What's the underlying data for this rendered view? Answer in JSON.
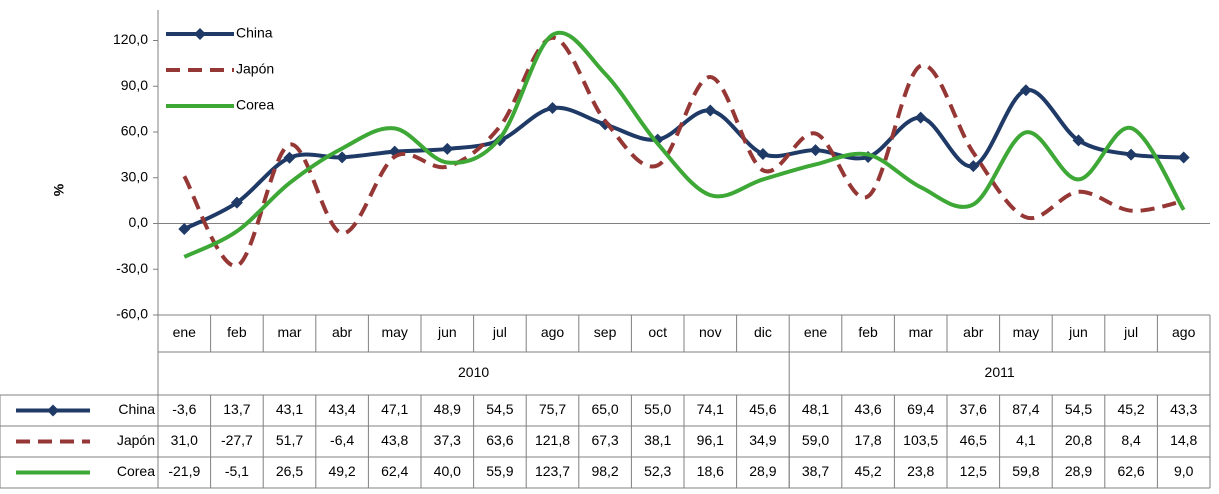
{
  "chart_data": {
    "type": "line",
    "y_label": "%",
    "ylim": [
      -60,
      140
    ],
    "yticks": [
      {
        "value": -60,
        "label": "-60,0"
      },
      {
        "value": -30,
        "label": "-30,0"
      },
      {
        "value": 0,
        "label": "0,0"
      },
      {
        "value": 30,
        "label": "30,0"
      },
      {
        "value": 60,
        "label": "60,0"
      },
      {
        "value": 90,
        "label": "90,0"
      },
      {
        "value": 120,
        "label": "120,0"
      }
    ],
    "category_groups": [
      {
        "name": "2010",
        "categories": [
          "ene",
          "feb",
          "mar",
          "abr",
          "may",
          "jun",
          "jul",
          "ago",
          "sep",
          "oct",
          "nov",
          "dic"
        ]
      },
      {
        "name": "2011",
        "categories": [
          "ene",
          "feb",
          "mar",
          "abr",
          "may",
          "jun",
          "jul",
          "ago"
        ]
      }
    ],
    "legend": "top-left",
    "smooth": true,
    "series": [
      {
        "name": "China",
        "color": "#1f3a66",
        "dash": false,
        "marker": "diamond",
        "values": [
          -3.6,
          13.7,
          43.1,
          43.4,
          47.1,
          48.9,
          54.5,
          75.7,
          65.0,
          55.0,
          74.1,
          45.6,
          48.1,
          43.6,
          69.4,
          37.6,
          87.4,
          54.5,
          45.2,
          43.3
        ],
        "value_labels": [
          "-3,6",
          "13,7",
          "43,1",
          "43,4",
          "47,1",
          "48,9",
          "54,5",
          "75,7",
          "65,0",
          "55,0",
          "74,1",
          "45,6",
          "48,1",
          "43,6",
          "69,4",
          "37,6",
          "87,4",
          "54,5",
          "45,2",
          "43,3"
        ]
      },
      {
        "name": "Japón",
        "color": "#953735",
        "dash": true,
        "marker": null,
        "values": [
          31.0,
          -27.7,
          51.7,
          -6.4,
          43.8,
          37.3,
          63.6,
          121.8,
          67.3,
          38.1,
          96.1,
          34.9,
          59.0,
          17.8,
          103.5,
          46.5,
          4.1,
          20.8,
          8.4,
          14.8
        ],
        "value_labels": [
          "31,0",
          "-27,7",
          "51,7",
          "-6,4",
          "43,8",
          "37,3",
          "63,6",
          "121,8",
          "67,3",
          "38,1",
          "96,1",
          "34,9",
          "59,0",
          "17,8",
          "103,5",
          "46,5",
          "4,1",
          "20,8",
          "8,4",
          "14,8"
        ]
      },
      {
        "name": "Corea",
        "color": "#3ea836",
        "dash": false,
        "marker": null,
        "values": [
          -21.9,
          -5.1,
          26.5,
          49.2,
          62.4,
          40.0,
          55.9,
          123.7,
          98.2,
          52.3,
          18.6,
          28.9,
          38.7,
          45.2,
          23.8,
          12.5,
          59.8,
          28.9,
          62.6,
          9.0
        ],
        "value_labels": [
          "-21,9",
          "-5,1",
          "26,5",
          "49,2",
          "62,4",
          "40,0",
          "55,9",
          "123,7",
          "98,2",
          "52,3",
          "18,6",
          "28,9",
          "38,7",
          "45,2",
          "23,8",
          "12,5",
          "59,8",
          "28,9",
          "62,6",
          "9,0"
        ]
      }
    ]
  }
}
